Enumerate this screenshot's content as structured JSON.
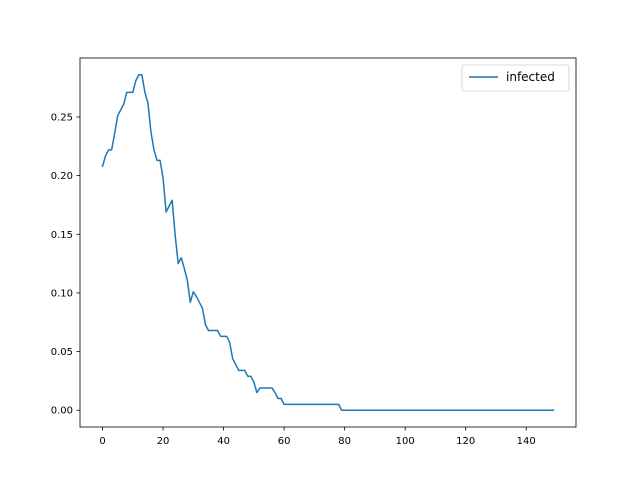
{
  "chart_data": {
    "type": "line",
    "title": "",
    "xlabel": "",
    "ylabel": "",
    "xlim": [
      -7.45,
      156.45
    ],
    "ylim": [
      -0.0143,
      0.3003
    ],
    "xticks": [
      0,
      20,
      40,
      60,
      80,
      100,
      120,
      140
    ],
    "yticks": [
      0.0,
      0.05,
      0.1,
      0.15,
      0.2,
      0.25
    ],
    "xtick_labels": [
      "0",
      "20",
      "40",
      "60",
      "80",
      "100",
      "120",
      "140"
    ],
    "ytick_labels": [
      "0.00",
      "0.05",
      "0.10",
      "0.15",
      "0.20",
      "0.25"
    ],
    "grid": false,
    "legend_position": "top-right",
    "series": [
      {
        "name": "infected",
        "color": "#1f77b4",
        "x": [
          0,
          1,
          2,
          3,
          4,
          5,
          6,
          7,
          8,
          9,
          10,
          11,
          12,
          13,
          14,
          15,
          16,
          17,
          18,
          19,
          20,
          21,
          22,
          23,
          24,
          25,
          26,
          27,
          28,
          29,
          30,
          31,
          32,
          33,
          34,
          35,
          36,
          37,
          38,
          39,
          40,
          41,
          42,
          43,
          44,
          45,
          46,
          47,
          48,
          49,
          50,
          51,
          52,
          53,
          54,
          55,
          56,
          57,
          58,
          59,
          60,
          61,
          62,
          63,
          64,
          65,
          66,
          67,
          68,
          69,
          70,
          71,
          72,
          73,
          74,
          75,
          76,
          77,
          78,
          79,
          80,
          149
        ],
        "y": [
          0.208,
          0.217,
          0.222,
          0.222,
          0.236,
          0.251,
          0.256,
          0.261,
          0.271,
          0.271,
          0.271,
          0.281,
          0.286,
          0.286,
          0.271,
          0.262,
          0.237,
          0.222,
          0.213,
          0.213,
          0.198,
          0.169,
          0.174,
          0.179,
          0.149,
          0.125,
          0.13,
          0.121,
          0.111,
          0.092,
          0.101,
          0.097,
          0.092,
          0.087,
          0.073,
          0.068,
          0.068,
          0.068,
          0.068,
          0.063,
          0.063,
          0.063,
          0.058,
          0.044,
          0.039,
          0.034,
          0.034,
          0.034,
          0.029,
          0.029,
          0.024,
          0.015,
          0.019,
          0.019,
          0.019,
          0.019,
          0.019,
          0.015,
          0.01,
          0.01,
          0.005,
          0.005,
          0.005,
          0.005,
          0.005,
          0.005,
          0.005,
          0.005,
          0.005,
          0.005,
          0.005,
          0.005,
          0.005,
          0.005,
          0.005,
          0.005,
          0.005,
          0.005,
          0.005,
          0.0,
          0.0,
          0.0
        ]
      }
    ]
  }
}
